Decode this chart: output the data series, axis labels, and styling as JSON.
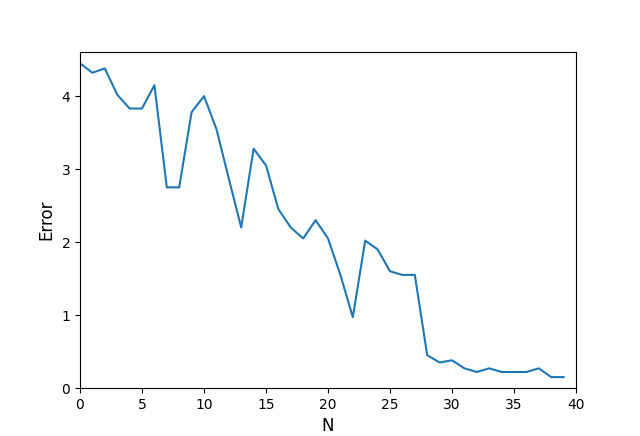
{
  "x": [
    0,
    1,
    2,
    3,
    4,
    5,
    6,
    7,
    8,
    9,
    10,
    11,
    12,
    13,
    14,
    15,
    16,
    17,
    18,
    19,
    20,
    21,
    22,
    23,
    24,
    25,
    26,
    27,
    28,
    29,
    30,
    31,
    32,
    33,
    34,
    35,
    36,
    37,
    38,
    39
  ],
  "y": [
    4.45,
    4.32,
    4.38,
    4.02,
    3.83,
    3.83,
    4.15,
    2.75,
    2.75,
    3.78,
    4.0,
    3.55,
    2.87,
    2.2,
    3.28,
    3.05,
    2.45,
    2.2,
    2.05,
    2.3,
    2.05,
    1.55,
    0.97,
    2.02,
    1.9,
    1.6,
    1.55,
    1.55,
    0.45,
    0.35,
    0.38,
    0.27,
    0.22,
    0.27,
    0.22,
    0.22,
    0.22,
    0.27,
    0.15,
    0.15
  ],
  "line_color": "#1f77b4",
  "line_width": 1.5,
  "xlabel": "N",
  "ylabel": "Error",
  "xlim": [
    0,
    40
  ],
  "ylim": [
    0,
    4.6
  ],
  "xticks": [
    0,
    5,
    10,
    15,
    20,
    25,
    30,
    35,
    40
  ],
  "yticks": [
    0,
    1,
    2,
    3,
    4
  ],
  "background_color": "#ffffff",
  "figsize": [
    6.4,
    4.36
  ],
  "dpi": 100
}
